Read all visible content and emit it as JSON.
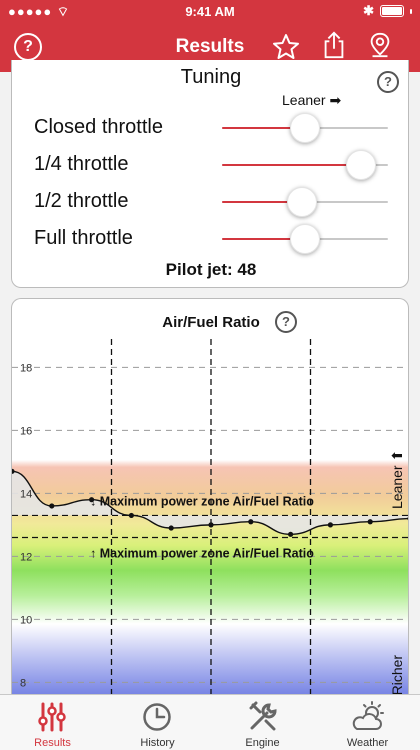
{
  "status_bar": {
    "time": "9:41 AM"
  },
  "nav": {
    "title": "Results"
  },
  "tuning": {
    "title": "Tuning",
    "help": "?",
    "leaner_hint": "Leaner ➡",
    "rows": [
      {
        "label": "Closed throttle",
        "position": 0.5
      },
      {
        "label": "1/4 throttle",
        "position": 0.91
      },
      {
        "label": "1/2 throttle",
        "position": 0.48
      },
      {
        "label": "Full throttle",
        "position": 0.5
      }
    ],
    "pilot_jet": "Pilot jet: 48"
  },
  "chart_card": {
    "title": "Air/Fuel Ratio",
    "help": "?"
  },
  "chart_data": {
    "type": "line",
    "y_ticks": [
      "8",
      "10",
      "12",
      "14",
      "16",
      "18"
    ],
    "ylim": [
      7.6,
      18.9
    ],
    "x_range": [
      0,
      100
    ],
    "grid": true,
    "series": [
      {
        "x": [
          0,
          10,
          20,
          30,
          40,
          50,
          60,
          70,
          80,
          90,
          100
        ],
        "values": [
          14.7,
          13.6,
          13.8,
          13.3,
          12.9,
          13.0,
          13.1,
          12.7,
          13.0,
          13.1,
          13.2
        ]
      }
    ],
    "power_zone": {
      "upper": 13.3,
      "lower": 12.6
    },
    "upper_label": "↓ Maximum power zone Air/Fuel Ratio",
    "lower_label": "↑ Maximum power zone Air/Fuel Ratio",
    "leaner_label": "Leaner ⬆",
    "richer_label": "⬇ Richer",
    "divider_x": [
      25,
      50,
      75
    ],
    "colors": {
      "line": "#111111",
      "fill_above": "#e6e6e6",
      "lean": "#f2b9a6",
      "rich": "#7a86e6"
    }
  },
  "tabs": [
    {
      "label": "Results",
      "icon": "sliders-icon",
      "active": true
    },
    {
      "label": "History",
      "icon": "clock-icon",
      "active": false
    },
    {
      "label": "Engine",
      "icon": "wrench-icon",
      "active": false
    },
    {
      "label": "Weather",
      "icon": "weather-icon",
      "active": false
    }
  ],
  "accent": "#d3363f"
}
